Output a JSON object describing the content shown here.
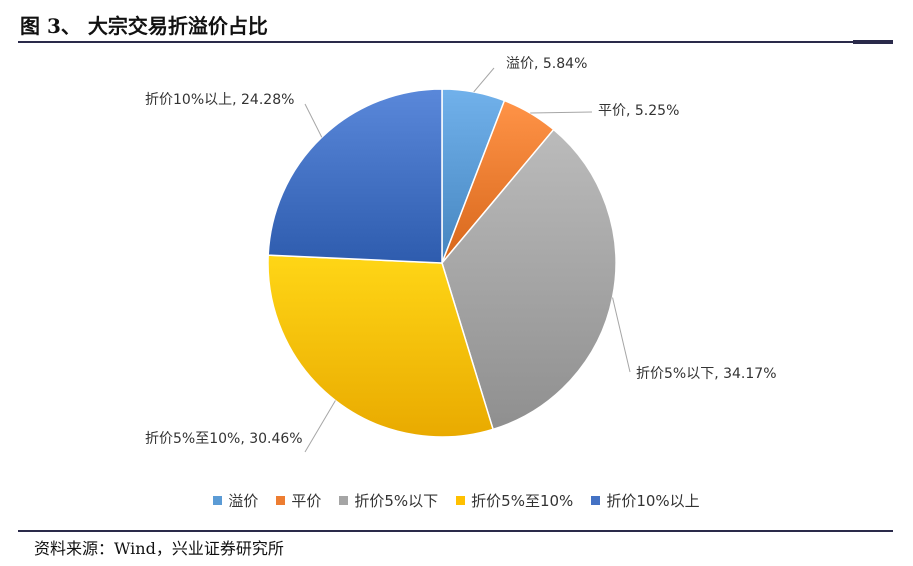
{
  "figure": {
    "title": "图 3、 大宗交易折溢价占比",
    "source": "资料来源：Wind，兴业证券研究所"
  },
  "chart_data": {
    "type": "pie",
    "title": "",
    "categories": [
      "溢价",
      "平价",
      "折价5%以下",
      "折价5%至10%",
      "折价10%以上"
    ],
    "values": [
      5.84,
      5.25,
      34.17,
      30.46,
      24.28
    ],
    "unit": "%",
    "data_labels": [
      "溢价, 5.84%",
      "平价, 5.25%",
      "折价5%以下, 34.17%",
      "折价5%至10%, 30.46%",
      "折价10%以上, 24.28%"
    ],
    "colors": [
      "#5b9bd5",
      "#ed7d31",
      "#a5a5a5",
      "#ffc000",
      "#4472c4"
    ],
    "legend_position": "bottom"
  }
}
